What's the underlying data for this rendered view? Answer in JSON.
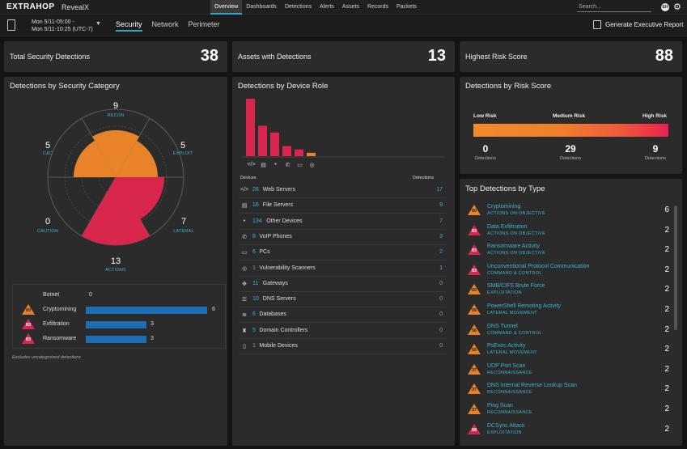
{
  "app": {
    "logo": "EXTRAHOP",
    "product": "RevealX"
  },
  "nav": [
    "Overview",
    "Dashboards",
    "Detections",
    "Alerts",
    "Assets",
    "Records",
    "Packets"
  ],
  "search": {
    "placeholder": "Search..."
  },
  "user": {
    "initials": "EH"
  },
  "time_range": {
    "line1": "Mon 5/11-05:00 -",
    "line2": "Mon 5/11-10:25 (UTC-7)"
  },
  "tabs": [
    "Security",
    "Network",
    "Perimeter"
  ],
  "report_label": "Generate Executive Report",
  "stats": [
    {
      "label": "Total Security Detections",
      "value": "38"
    },
    {
      "label": "Assets with Detections",
      "value": "13"
    },
    {
      "label": "Highest Risk Score",
      "value": "88"
    }
  ],
  "category_card": {
    "title": "Detections by Security Category",
    "segments": [
      {
        "label": "RECON",
        "value": "9"
      },
      {
        "label": "EXPLOIT",
        "value": "5"
      },
      {
        "label": "LATERAL",
        "value": "7"
      },
      {
        "label": "ACTIONS",
        "value": "13"
      },
      {
        "label": "CAUTION",
        "value": "0"
      },
      {
        "label": "C&C",
        "value": "5"
      }
    ],
    "objectives": [
      {
        "name": "Botnet",
        "value": 0,
        "score": ""
      },
      {
        "name": "Cryptomining",
        "value": 6,
        "score": "60"
      },
      {
        "name": "Exfiltration",
        "value": 3,
        "score": "83"
      },
      {
        "name": "Ransomware",
        "value": 3,
        "score": "83"
      }
    ],
    "footnote": "Excludes uncategorized detections"
  },
  "device_card": {
    "title": "Detections by Device Role",
    "col_devices": "Devices",
    "col_detections": "Detections",
    "bar_values": [
      17,
      9,
      7,
      3,
      2,
      1
    ],
    "chart_icons": [
      "</>",
      "▤",
      "•",
      "✆",
      "▭",
      "◎"
    ],
    "rows": [
      {
        "icon": "</>",
        "count": "26",
        "name": "Web Servers",
        "detections": "17"
      },
      {
        "icon": "▤",
        "count": "16",
        "name": "File Servers",
        "detections": "9"
      },
      {
        "icon": "•",
        "count": "134",
        "name": "Other Devices",
        "detections": "7"
      },
      {
        "icon": "✆",
        "count": "8",
        "name": "VoIP Phones",
        "detections": "3"
      },
      {
        "icon": "▭",
        "count": "6",
        "name": "PCs",
        "detections": "2"
      },
      {
        "icon": "◎",
        "count": "1",
        "name": "Vulnerability Scanners",
        "detections": "1"
      },
      {
        "icon": "✥",
        "count": "11",
        "name": "Gateways",
        "detections": "0"
      },
      {
        "icon": "☰",
        "count": "10",
        "name": "DNS Servers",
        "detections": "0"
      },
      {
        "icon": "≣",
        "count": "6",
        "name": "Databases",
        "detections": "0"
      },
      {
        "icon": "♜",
        "count": "5",
        "name": "Domain Controllers",
        "detections": "0"
      },
      {
        "icon": "▯",
        "count": "1",
        "name": "Mobile Devices",
        "detections": "0"
      }
    ]
  },
  "risk_card": {
    "title": "Detections by Risk Score",
    "low_label": "Low Risk",
    "medium_label": "Medium Risk",
    "high_label": "High Risk",
    "low_value": "0",
    "medium_value": "29",
    "high_value": "9",
    "sub_label": "Detections"
  },
  "types_card": {
    "title": "Top Detections by Type",
    "rows": [
      {
        "score": "60",
        "level": "orange",
        "name": "Cryptomining",
        "category": "ACTIONS ON OBJECTIVE",
        "count": "6"
      },
      {
        "score": "83",
        "level": "red",
        "name": "Data Exfiltration",
        "category": "ACTIONS ON OBJECTIVE",
        "count": "2"
      },
      {
        "score": "83",
        "level": "red",
        "name": "Ransomware Activity",
        "category": "ACTIONS ON OBJECTIVE",
        "count": "2"
      },
      {
        "score": "83",
        "level": "red",
        "name": "Unconventional Protocol Communication",
        "category": "COMMAND & CONTROL",
        "count": "2"
      },
      {
        "score": "60",
        "level": "orange",
        "name": "SMB/CIFS Brute Force",
        "category": "EXPLOITATION",
        "count": "2"
      },
      {
        "score": "56",
        "level": "orange",
        "name": "PowerShell Remoting Activity",
        "category": "LATERAL MOVEMENT",
        "count": "2"
      },
      {
        "score": "56",
        "level": "orange",
        "name": "DNS Tunnel",
        "category": "COMMAND & CONTROL",
        "count": "2"
      },
      {
        "score": "56",
        "level": "orange",
        "name": "PsExec Activity",
        "category": "LATERAL MOVEMENT",
        "count": "2"
      },
      {
        "score": "37",
        "level": "orange",
        "name": "UDP Port Scan",
        "category": "RECONNAISSANCE",
        "count": "2"
      },
      {
        "score": "37",
        "level": "orange",
        "name": "DNS Internal Reverse Lookup Scan",
        "category": "RECONNAISSANCE",
        "count": "2"
      },
      {
        "score": "37",
        "level": "orange",
        "name": "Ping Scan",
        "category": "RECONNAISSANCE",
        "count": "2"
      },
      {
        "score": "88",
        "level": "red",
        "name": "DCSync Attack",
        "category": "EXPLOITATION",
        "count": "2"
      }
    ]
  },
  "colors": {
    "accent": "#2aa8c9",
    "orange": "#e8832a",
    "red": "#d8264c",
    "bar_blue": "#1d6fb5"
  }
}
